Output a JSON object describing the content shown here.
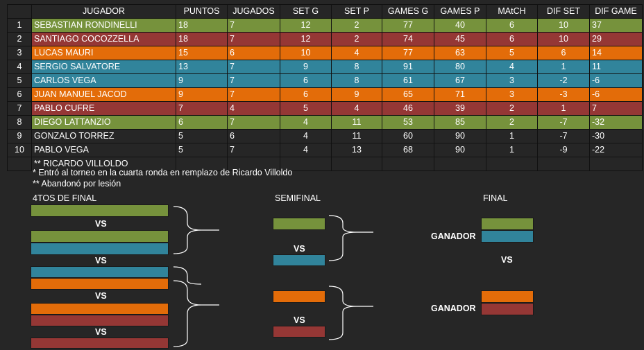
{
  "colors": {
    "green": "#76923c",
    "red": "#953735",
    "orange": "#e36c09",
    "teal": "#31849b"
  },
  "table": {
    "headers": [
      "JUGADOR",
      "PUNTOS",
      "JUGADOS",
      "SET G",
      "SET P",
      "GAMES G",
      "GAMES P",
      "MAtCH",
      "DIF SET",
      "DIF GAME"
    ],
    "rows": [
      {
        "pos": "1",
        "name": "SEBASTIAN RONDINELLI",
        "puntos": "18",
        "jugados": "7",
        "setg": "12",
        "setp": "2",
        "gamesg": "77",
        "gamesp": "40",
        "match": "6",
        "difset": "10",
        "difgame": "37",
        "color": "green"
      },
      {
        "pos": "2",
        "name": "SANTIAGO COCOZZELLA",
        "puntos": "18",
        "jugados": "7",
        "setg": "12",
        "setp": "2",
        "gamesg": "74",
        "gamesp": "45",
        "match": "6",
        "difset": "10",
        "difgame": "29",
        "color": "red"
      },
      {
        "pos": "3",
        "name": "LUCAS MAURI",
        "puntos": "15",
        "jugados": "6",
        "setg": "10",
        "setp": "4",
        "gamesg": "77",
        "gamesp": "63",
        "match": "5",
        "difset": "6",
        "difgame": "14",
        "color": "orange"
      },
      {
        "pos": "4",
        "name": "SERGIO SALVATORE",
        "puntos": "13",
        "jugados": "7",
        "setg": "9",
        "setp": "8",
        "gamesg": "91",
        "gamesp": "80",
        "match": "4",
        "difset": "1",
        "difgame": "11",
        "color": "teal"
      },
      {
        "pos": "5",
        "name": "CARLOS VEGA",
        "puntos": "9",
        "jugados": "7",
        "setg": "6",
        "setp": "8",
        "gamesg": "61",
        "gamesp": "67",
        "match": "3",
        "difset": "-2",
        "difgame": "-6",
        "color": "teal"
      },
      {
        "pos": "6",
        "name": "JUAN MANUEL JACOD",
        "puntos": "9",
        "jugados": "7",
        "setg": "6",
        "setp": "9",
        "gamesg": "65",
        "gamesp": "71",
        "match": "3",
        "difset": "-3",
        "difgame": "-6",
        "color": "orange"
      },
      {
        "pos": "7",
        "name": "PABLO CUFRE",
        "puntos": "7",
        "jugados": "4",
        "setg": "5",
        "setp": "4",
        "gamesg": "46",
        "gamesp": "39",
        "match": "2",
        "difset": "1",
        "difgame": "7",
        "color": "red"
      },
      {
        "pos": "8",
        "name": "DIEGO LATTANZIO",
        "puntos": "6",
        "jugados": "7",
        "setg": "4",
        "setp": "11",
        "gamesg": "53",
        "gamesp": "85",
        "match": "2",
        "difset": "-7",
        "difgame": "-32",
        "color": "green"
      },
      {
        "pos": "9",
        "name": "GONZALO TORREZ",
        "puntos": "5",
        "jugados": "6",
        "setg": "4",
        "setp": "11",
        "gamesg": "60",
        "gamesp": "90",
        "match": "1",
        "difset": "-7",
        "difgame": "-30",
        "color": "none"
      },
      {
        "pos": "10",
        "name": "PABLO VEGA",
        "puntos": "5",
        "jugados": "7",
        "setg": "4",
        "setp": "13",
        "gamesg": "68",
        "gamesp": "90",
        "match": "1",
        "difset": "-9",
        "difgame": "-22",
        "color": "none"
      }
    ],
    "extra_row": "** RICARDO VILLOLDO"
  },
  "notes": {
    "note1": "* Entró al torneo en la cuarta ronda en remplazo de Ricardo Villoldo",
    "note2": "** Abandonó por lesión"
  },
  "bracket": {
    "quarters_title": "4TOS DE FINAL",
    "semis_title": "SEMIFINAL",
    "final_title": "FINAL",
    "vs": "VS",
    "winner": "GANADOR"
  }
}
